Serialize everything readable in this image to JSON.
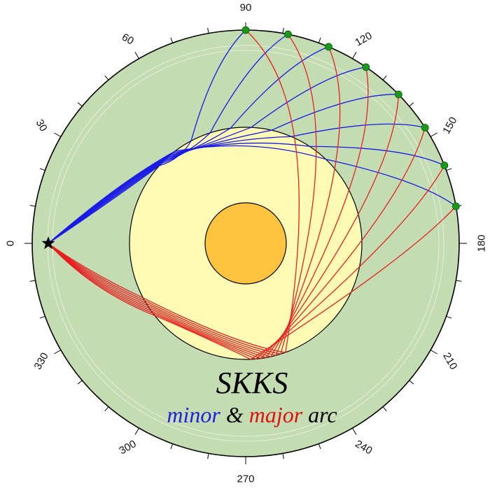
{
  "figure": {
    "title": "SKKS",
    "subtitle_parts": [
      {
        "text": "minor",
        "color": "#1f1fdc"
      },
      {
        "text": " & ",
        "color": "#000000"
      },
      {
        "text": "major",
        "color": "#e01010"
      },
      {
        "text": " arc",
        "color": "#000000"
      }
    ],
    "angle_labels": [
      "0",
      "30",
      "60",
      "90",
      "120",
      "150",
      "180",
      "210",
      "240",
      "270",
      "300",
      "330"
    ],
    "colors": {
      "mantle": "#c4dcb2",
      "outer_core": "#fffbb4",
      "inner_core": "#fec440",
      "minor_arc": "#1a1ae6",
      "major_arc": "#e62020",
      "station": "#1a9a1a",
      "source": "#000000"
    },
    "source_icon": "star-icon",
    "station_icon": "circle-icon",
    "station_count": 8,
    "ray_path_count": 8
  }
}
